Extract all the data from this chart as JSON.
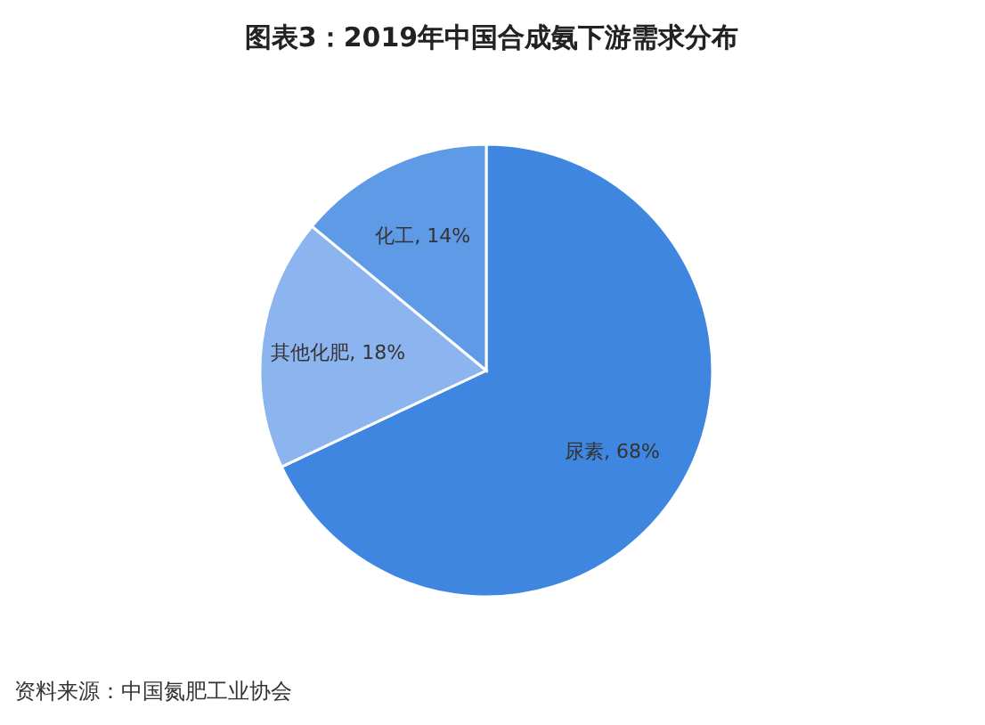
{
  "chart_data": {
    "type": "pie",
    "title": "图表3：2019年中国合成氨下游需求分布",
    "categories": [
      "尿素",
      "其他化肥",
      "化工"
    ],
    "values": [
      68,
      18,
      14
    ],
    "colors": [
      "#3f86e0",
      "#8cb4ee",
      "#5f9ae6"
    ],
    "value_labels": [
      "68%",
      "18%",
      "14%"
    ],
    "annotations": [
      "资料来源：中国氮肥工业协会"
    ]
  }
}
